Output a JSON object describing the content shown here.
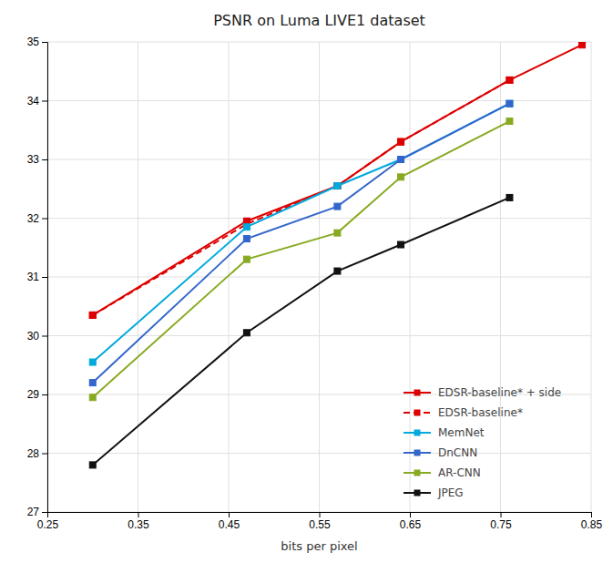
{
  "chart_data": {
    "type": "line",
    "title": "PSNR on Luma LIVE1 dataset",
    "xlabel": "bits per pixel",
    "x": [
      0.3,
      0.47,
      0.57,
      0.64,
      0.76,
      0.84
    ],
    "xlim": [
      0.25,
      0.85
    ],
    "xticks": [
      0.25,
      0.35,
      0.45,
      0.55,
      0.65,
      0.75,
      0.85
    ],
    "ylim": [
      27,
      35
    ],
    "yticks": [
      27,
      28,
      29,
      30,
      31,
      32,
      33,
      34,
      35
    ],
    "grid": true,
    "legend": "lower-right",
    "series": [
      {
        "name": "EDSR-baseline* + side",
        "color": "#dd0000",
        "marker": "square",
        "line_style": "solid",
        "values": [
          30.35,
          31.95,
          32.55,
          33.3,
          34.35,
          34.95
        ]
      },
      {
        "name": "EDSR-baseline*",
        "color": "#dd0000",
        "marker": "square",
        "line_style": "dashed",
        "values": [
          30.35,
          31.9,
          32.55,
          33.3,
          34.35,
          null
        ]
      },
      {
        "name": "MemNet",
        "color": "#00aadd",
        "marker": "square",
        "line_style": "solid",
        "values": [
          29.55,
          31.85,
          32.55,
          33.0,
          33.95,
          null
        ]
      },
      {
        "name": "DnCNN",
        "color": "#3366cc",
        "marker": "square",
        "line_style": "solid",
        "values": [
          29.2,
          31.65,
          32.2,
          33.0,
          33.95,
          null
        ]
      },
      {
        "name": "AR-CNN",
        "color": "#88aa22",
        "marker": "square",
        "line_style": "solid",
        "values": [
          28.95,
          31.3,
          31.75,
          32.7,
          33.65,
          null
        ]
      },
      {
        "name": "JPEG",
        "color": "#111111",
        "marker": "square",
        "line_style": "solid",
        "values": [
          27.8,
          30.05,
          31.1,
          31.55,
          32.35,
          null
        ]
      }
    ]
  }
}
